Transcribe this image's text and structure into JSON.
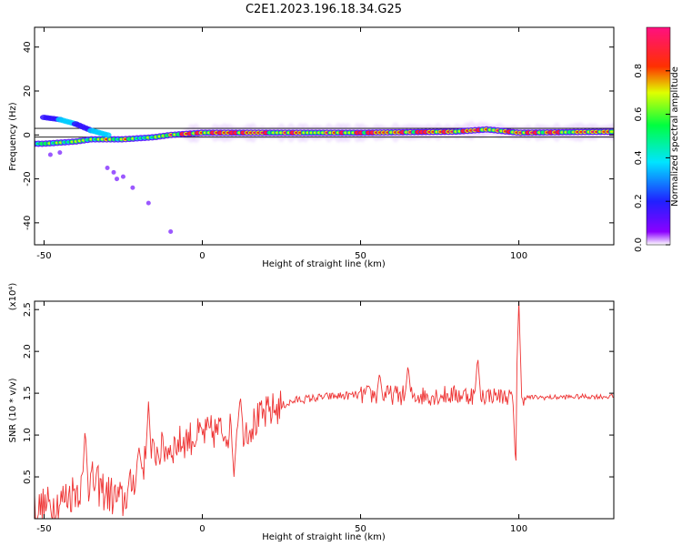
{
  "title": "C2E1.2023.196.18.34.G25",
  "chart_data": [
    {
      "type": "heatmap",
      "xlabel": "Height of straight line (km)",
      "ylabel": "Frequency (Hz)",
      "xlim": [
        -53,
        130
      ],
      "ylim": [
        -50,
        49
      ],
      "xticks": [
        -50,
        0,
        50,
        100
      ],
      "yticks": [
        -40,
        -20,
        0,
        20,
        40
      ],
      "reference_band_hz": [
        -1,
        3
      ],
      "colorbar": {
        "label": "Normalized spectral amplitude",
        "range": [
          0,
          1
        ],
        "ticks": [
          "0.0",
          "0.2",
          "0.4",
          "0.6",
          "0.8"
        ],
        "colors": [
          "#ffffff",
          "#8b00ff",
          "#0000ff",
          "#00ffff",
          "#00ff00",
          "#ffff00",
          "#ff0000",
          "#ff0080"
        ]
      },
      "main_ridge": [
        {
          "x": -50,
          "y": -4
        },
        {
          "x": -45,
          "y": -3.5
        },
        {
          "x": -40,
          "y": -3
        },
        {
          "x": -35,
          "y": -2
        },
        {
          "x": -30,
          "y": -2
        },
        {
          "x": -25,
          "y": -2
        },
        {
          "x": -20,
          "y": -1.5
        },
        {
          "x": -15,
          "y": -1
        },
        {
          "x": -10,
          "y": 0
        },
        {
          "x": 0,
          "y": 1
        },
        {
          "x": 10,
          "y": 1
        },
        {
          "x": 30,
          "y": 1
        },
        {
          "x": 50,
          "y": 1
        },
        {
          "x": 80,
          "y": 1.5
        },
        {
          "x": 90,
          "y": 2.5
        },
        {
          "x": 100,
          "y": 1
        },
        {
          "x": 130,
          "y": 1.5
        }
      ],
      "upper_branch": [
        {
          "x": -50,
          "y": 8
        },
        {
          "x": -45,
          "y": 7
        },
        {
          "x": -40,
          "y": 5
        },
        {
          "x": -35,
          "y": 2
        },
        {
          "x": -30,
          "y": 0
        }
      ],
      "scatter_points": [
        {
          "x": -48,
          "y": -9
        },
        {
          "x": -45,
          "y": -8
        },
        {
          "x": -30,
          "y": -15
        },
        {
          "x": -28,
          "y": -17
        },
        {
          "x": -27,
          "y": -20
        },
        {
          "x": -25,
          "y": -19
        },
        {
          "x": -22,
          "y": -24
        },
        {
          "x": -17,
          "y": -31
        },
        {
          "x": -10,
          "y": -44
        }
      ]
    },
    {
      "type": "line",
      "xlabel": "Height of straight line (km)",
      "ylabel": "SNR (10 * v/v)",
      "multiplier_label": "(x10⁴)",
      "xlim": [
        -53,
        130
      ],
      "ylim": [
        0,
        2.6
      ],
      "xticks": [
        -50,
        0,
        50,
        100
      ],
      "yticks": [
        "0.5",
        "1.0",
        "1.5",
        "2.0",
        "2.5"
      ],
      "color": "#ee3333",
      "trend": [
        {
          "x": -53,
          "y": 0.1
        },
        {
          "x": -45,
          "y": 0.2
        },
        {
          "x": -40,
          "y": 0.35
        },
        {
          "x": -35,
          "y": 0.45
        },
        {
          "x": -30,
          "y": 0.3
        },
        {
          "x": -25,
          "y": 0.2
        },
        {
          "x": -20,
          "y": 0.6
        },
        {
          "x": -15,
          "y": 0.8
        },
        {
          "x": -10,
          "y": 0.85
        },
        {
          "x": -5,
          "y": 0.95
        },
        {
          "x": 0,
          "y": 1.0
        },
        {
          "x": 5,
          "y": 1.05
        },
        {
          "x": 10,
          "y": 1.05
        },
        {
          "x": 15,
          "y": 1.1
        },
        {
          "x": 20,
          "y": 1.25
        },
        {
          "x": 25,
          "y": 1.35
        },
        {
          "x": 30,
          "y": 1.42
        },
        {
          "x": 40,
          "y": 1.46
        },
        {
          "x": 50,
          "y": 1.48
        },
        {
          "x": 60,
          "y": 1.48
        },
        {
          "x": 70,
          "y": 1.47
        },
        {
          "x": 80,
          "y": 1.48
        },
        {
          "x": 90,
          "y": 1.48
        },
        {
          "x": 100,
          "y": 1.45
        },
        {
          "x": 110,
          "y": 1.45
        },
        {
          "x": 120,
          "y": 1.46
        },
        {
          "x": 130,
          "y": 1.46
        }
      ],
      "spikes": [
        {
          "x": -37,
          "y": 1.1
        },
        {
          "x": -17,
          "y": 1.4
        },
        {
          "x": -20,
          "y": 0.85
        },
        {
          "x": 10,
          "y": 0.5
        },
        {
          "x": 12,
          "y": 1.48
        },
        {
          "x": 56,
          "y": 1.75
        },
        {
          "x": 65,
          "y": 1.85
        },
        {
          "x": 87,
          "y": 1.95
        },
        {
          "x": 99,
          "y": 0.6
        },
        {
          "x": 100,
          "y": 2.6
        }
      ]
    }
  ]
}
